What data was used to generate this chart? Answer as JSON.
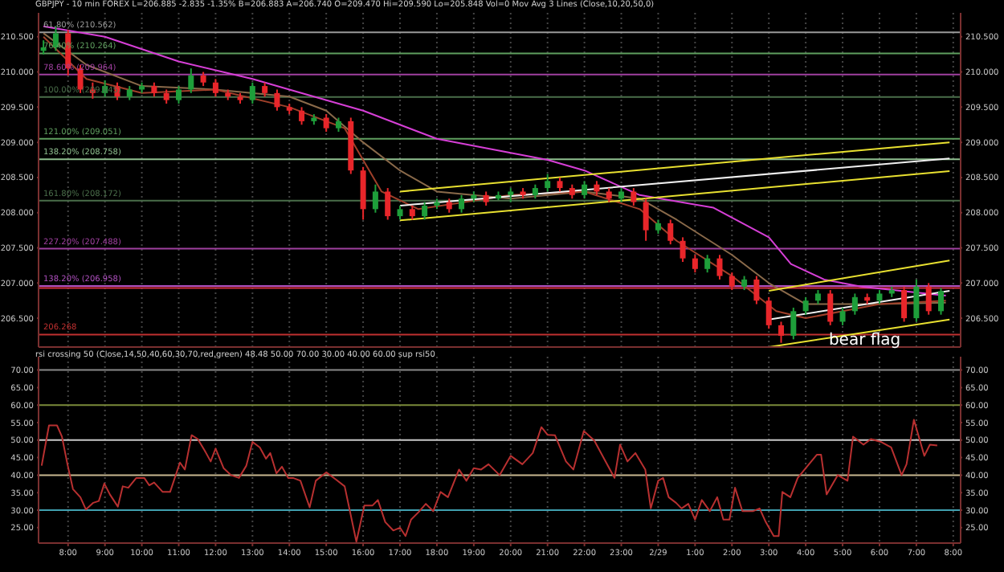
{
  "chart_data": [
    {
      "type": "candlestick",
      "title": "GBPJPY - 10 min FOREX  L=206.885  -2.835  -1.35%  B=206.883  A=206.740  O=209.470  Hi=209.590  Lo=205.848  Vol=0  Mov Avg 3 Lines (Close,10,20,50,0)",
      "x": [
        "--02-28T07:20",
        "--02-28T07:40",
        "--02-28T08:00",
        "--02-28T08:20",
        "--02-28T08:40",
        "--02-28T09:00",
        "--02-28T09:20",
        "--02-28T09:40",
        "--02-28T10:00",
        "--02-28T10:20",
        "--02-28T10:40",
        "--02-28T11:00",
        "--02-28T11:20",
        "--02-28T11:40",
        "--02-28T12:00",
        "--02-28T12:20",
        "--02-28T12:40",
        "--02-28T13:00",
        "--02-28T13:20",
        "--02-28T13:40",
        "--02-28T14:00",
        "--02-28T14:20",
        "--02-28T14:40",
        "--02-28T15:00",
        "--02-28T15:20",
        "--02-28T15:40",
        "--02-28T16:00",
        "--02-28T16:20",
        "--02-28T16:40",
        "--02-28T17:00",
        "--02-28T17:20",
        "--02-28T17:40",
        "--02-28T18:00",
        "--02-28T18:20",
        "--02-28T18:40",
        "--02-28T19:00",
        "--02-28T19:20",
        "--02-28T19:40",
        "--02-28T20:00",
        "--02-28T20:20",
        "--02-28T20:40",
        "--02-28T21:00",
        "--02-28T21:20",
        "--02-28T21:40",
        "--02-28T22:00",
        "--02-28T22:20",
        "--02-28T22:40",
        "--02-28T23:00",
        "--02-28T23:20",
        "--02-28T23:40",
        "--02-29T00:00",
        "--02-29T00:20",
        "--02-29T00:40",
        "--02-29T01:00",
        "--02-29T01:20",
        "--02-29T01:40",
        "--02-29T02:00",
        "--02-29T02:20",
        "--02-29T02:40",
        "--02-29T03:00",
        "--02-29T03:20",
        "--02-29T03:40",
        "--02-29T04:00",
        "--02-29T04:20",
        "--02-29T04:40",
        "--02-29T05:00",
        "--02-29T05:20",
        "--02-29T05:40",
        "--02-29T06:00",
        "--02-29T06:20",
        "--02-29T06:40",
        "--02-29T07:00",
        "--02-29T07:20",
        "--02-29T07:40"
      ],
      "ohlc": [
        [
          210.3,
          210.45,
          210.25,
          210.35
        ],
        [
          210.35,
          210.65,
          210.3,
          210.55
        ],
        [
          210.55,
          210.6,
          209.95,
          210.05
        ],
        [
          210.05,
          210.1,
          209.7,
          209.75
        ],
        [
          209.75,
          209.85,
          209.62,
          209.7
        ],
        [
          209.7,
          209.88,
          209.65,
          209.8
        ],
        [
          209.8,
          209.85,
          209.6,
          209.65
        ],
        [
          209.65,
          209.8,
          209.6,
          209.75
        ],
        [
          209.75,
          209.85,
          209.7,
          209.8
        ],
        [
          209.8,
          209.85,
          209.65,
          209.7
        ],
        [
          209.7,
          209.75,
          209.55,
          209.6
        ],
        [
          209.6,
          209.8,
          209.55,
          209.75
        ],
        [
          209.75,
          210.05,
          209.7,
          209.95
        ],
        [
          209.95,
          210.0,
          209.8,
          209.85
        ],
        [
          209.85,
          209.9,
          209.65,
          209.7
        ],
        [
          209.7,
          209.75,
          209.6,
          209.65
        ],
        [
          209.65,
          209.7,
          209.55,
          209.6
        ],
        [
          209.6,
          209.85,
          209.55,
          209.8
        ],
        [
          209.8,
          209.85,
          209.65,
          209.7
        ],
        [
          209.7,
          209.75,
          209.45,
          209.5
        ],
        [
          209.5,
          209.55,
          209.4,
          209.45
        ],
        [
          209.45,
          209.5,
          209.25,
          209.3
        ],
        [
          209.3,
          209.4,
          209.25,
          209.35
        ],
        [
          209.35,
          209.4,
          209.15,
          209.2
        ],
        [
          209.2,
          209.35,
          209.15,
          209.3
        ],
        [
          209.3,
          209.35,
          208.55,
          208.6
        ],
        [
          208.6,
          208.65,
          207.9,
          208.05
        ],
        [
          208.05,
          208.4,
          208.0,
          208.3
        ],
        [
          208.3,
          208.35,
          207.9,
          207.95
        ],
        [
          207.95,
          208.1,
          207.9,
          208.05
        ],
        [
          208.05,
          208.1,
          207.9,
          207.95
        ],
        [
          207.95,
          208.15,
          207.9,
          208.1
        ],
        [
          208.1,
          208.2,
          208.05,
          208.15
        ],
        [
          208.15,
          208.2,
          208.0,
          208.05
        ],
        [
          208.05,
          208.25,
          208.0,
          208.2
        ],
        [
          208.2,
          208.3,
          208.15,
          208.25
        ],
        [
          208.25,
          208.3,
          208.1,
          208.15
        ],
        [
          208.2,
          208.3,
          208.18,
          208.25
        ],
        [
          208.25,
          208.35,
          208.15,
          208.3
        ],
        [
          208.3,
          208.35,
          208.2,
          208.25
        ],
        [
          208.25,
          208.4,
          208.2,
          208.35
        ],
        [
          208.35,
          208.55,
          208.3,
          208.45
        ],
        [
          208.45,
          208.5,
          208.3,
          208.35
        ],
        [
          208.35,
          208.4,
          208.2,
          208.25
        ],
        [
          208.25,
          208.45,
          208.2,
          208.4
        ],
        [
          208.4,
          208.45,
          208.25,
          208.3
        ],
        [
          208.3,
          208.35,
          208.15,
          208.2
        ],
        [
          208.2,
          208.35,
          208.15,
          208.3
        ],
        [
          208.3,
          208.35,
          208.1,
          208.15
        ],
        [
          208.15,
          208.2,
          207.6,
          207.75
        ],
        [
          207.75,
          207.9,
          207.7,
          207.85
        ],
        [
          207.85,
          207.9,
          207.55,
          207.6
        ],
        [
          207.6,
          207.65,
          207.3,
          207.35
        ],
        [
          207.35,
          207.4,
          207.15,
          207.2
        ],
        [
          207.2,
          207.4,
          207.15,
          207.35
        ],
        [
          207.35,
          207.4,
          207.05,
          207.1
        ],
        [
          207.1,
          207.15,
          206.9,
          206.95
        ],
        [
          206.95,
          207.1,
          206.9,
          207.05
        ],
        [
          207.05,
          207.1,
          206.7,
          206.75
        ],
        [
          206.75,
          206.8,
          206.35,
          206.4
        ],
        [
          206.4,
          206.45,
          206.15,
          206.25
        ],
        [
          206.25,
          206.65,
          206.2,
          206.6
        ],
        [
          206.6,
          206.8,
          206.55,
          206.75
        ],
        [
          206.75,
          206.9,
          206.7,
          206.85
        ],
        [
          206.85,
          206.9,
          206.4,
          206.45
        ],
        [
          206.45,
          206.65,
          206.4,
          206.6
        ],
        [
          206.6,
          206.85,
          206.55,
          206.8
        ],
        [
          206.8,
          206.85,
          206.7,
          206.75
        ],
        [
          206.75,
          206.9,
          206.7,
          206.85
        ],
        [
          206.85,
          206.95,
          206.8,
          206.9
        ],
        [
          206.9,
          206.95,
          206.45,
          206.5
        ],
        [
          206.5,
          207.05,
          206.45,
          206.95
        ],
        [
          206.95,
          207.0,
          206.55,
          206.6
        ],
        [
          206.6,
          206.93,
          206.55,
          206.885
        ]
      ],
      "colors": [
        "#1e9e3a",
        "#1e9e3a",
        "#e8262a",
        "#e8262a",
        "#e8262a",
        "#1e9e3a",
        "#e8262a",
        "#1e9e3a",
        "#1e9e3a",
        "#e8262a",
        "#e8262a",
        "#1e9e3a",
        "#1e9e3a",
        "#e8262a",
        "#e8262a",
        "#e8262a",
        "#e8262a",
        "#1e9e3a",
        "#e8262a",
        "#e8262a",
        "#e8262a",
        "#e8262a",
        "#1e9e3a",
        "#e8262a",
        "#1e9e3a",
        "#e8262a",
        "#e8262a",
        "#1e9e3a",
        "#e8262a",
        "#1e9e3a",
        "#e8262a",
        "#1e9e3a",
        "#1e9e3a",
        "#e8262a",
        "#1e9e3a",
        "#1e9e3a",
        "#e8262a",
        "#1e9e3a",
        "#1e9e3a",
        "#e8262a",
        "#1e9e3a",
        "#1e9e3a",
        "#e8262a",
        "#e8262a",
        "#1e9e3a",
        "#e8262a",
        "#e8262a",
        "#1e9e3a",
        "#e8262a",
        "#e8262a",
        "#1e9e3a",
        "#e8262a",
        "#e8262a",
        "#e8262a",
        "#1e9e3a",
        "#e8262a",
        "#e8262a",
        "#1e9e3a",
        "#e8262a",
        "#e8262a",
        "#e8262a",
        "#1e9e3a",
        "#1e9e3a",
        "#1e9e3a",
        "#e8262a",
        "#1e9e3a",
        "#1e9e3a",
        "#e8262a",
        "#1e9e3a",
        "#1e9e3a",
        "#e8262a",
        "#1e9e3a",
        "#e8262a",
        "#1e9e3a"
      ],
      "series": [
        {
          "type": "line",
          "color": "#d63fd6",
          "x": [
            "--02-28T07:20",
            "--02-28T09:00",
            "--02-28T11:00",
            "--02-28T13:00",
            "--02-28T14:00",
            "--02-28T16:00",
            "--02-28T18:00",
            "--02-28T19:00",
            "--02-28T21:00",
            "--02-28T22:00",
            "--02-28T23:30",
            "--02-29T01:30",
            "--02-29T03:00",
            "--02-29T03:36",
            "--02-29T04:30",
            "--02-29T05:30",
            "--02-29T07:48"
          ],
          "values": [
            210.65,
            210.5,
            210.15,
            209.9,
            209.75,
            209.45,
            209.05,
            208.95,
            208.75,
            208.6,
            208.25,
            208.07,
            207.65,
            207.27,
            207.05,
            206.95,
            206.82
          ]
        },
        {
          "type": "line",
          "color": "#8a6a4a",
          "x": [
            "--02-28T07:20",
            "--02-28T08:30",
            "--02-28T10:00",
            "--02-28T12:00",
            "--02-28T14:00",
            "--02-28T15:00",
            "--02-28T16:00",
            "--02-28T17:00",
            "--02-28T18:00",
            "--02-28T20:00",
            "--02-28T22:00",
            "--02-28T23:30",
            "--02-29T00:30",
            "--02-29T02:00",
            "--02-29T03:00",
            "--02-29T04:00",
            "--02-29T06:00",
            "--02-29T07:48"
          ],
          "values": [
            210.55,
            210.1,
            209.8,
            209.75,
            209.65,
            209.45,
            209.0,
            208.6,
            208.3,
            208.2,
            208.3,
            208.2,
            207.9,
            207.4,
            207.0,
            206.7,
            206.7,
            206.72
          ]
        },
        {
          "type": "line",
          "color": "#a0402a",
          "x": [
            "--02-28T07:20",
            "--02-28T08:30",
            "--02-28T10:00",
            "--02-28T12:00",
            "--02-28T14:00",
            "--02-28T15:30",
            "--02-28T16:30",
            "--02-28T17:30",
            "--02-28T20:00",
            "--02-28T22:00",
            "--02-28T23:30",
            "--02-29T00:30",
            "--02-29T02:00",
            "--02-29T03:12",
            "--02-29T04:00",
            "--02-29T06:00",
            "--02-29T07:48"
          ],
          "values": [
            210.5,
            209.9,
            209.7,
            209.75,
            209.5,
            209.2,
            208.3,
            208.05,
            208.25,
            208.3,
            208.05,
            207.6,
            207.1,
            206.6,
            206.5,
            206.7,
            206.75
          ]
        },
        {
          "type": "line",
          "color": "#e8e030",
          "x": [
            "--02-28T17:00",
            "--02-29T07:54"
          ],
          "values": [
            208.3,
            209.0
          ]
        },
        {
          "type": "line",
          "color": "#f0f0f0",
          "x": [
            "--02-28T17:00",
            "--02-29T07:54"
          ],
          "values": [
            208.1,
            208.77
          ]
        },
        {
          "type": "line",
          "color": "#e8e030",
          "x": [
            "--02-28T17:00",
            "--02-29T07:54"
          ],
          "values": [
            207.89,
            208.59
          ]
        },
        {
          "type": "line",
          "color": "#e8e030",
          "x": [
            "--02-29T03:00",
            "--02-29T07:54"
          ],
          "values": [
            206.89,
            207.32
          ]
        },
        {
          "type": "line",
          "color": "#f0f0f0",
          "x": [
            "--02-29T03:00",
            "--02-29T07:54"
          ],
          "values": [
            206.48,
            206.89
          ]
        },
        {
          "type": "line",
          "color": "#e8e030",
          "x": [
            "--02-29T03:00",
            "--02-29T07:54"
          ],
          "values": [
            206.09,
            206.48
          ]
        }
      ],
      "ref_lines": [
        {
          "axis": "y",
          "value": 210.562,
          "label": "61.80% (210.562)",
          "color": "#9a9a9a"
        },
        {
          "axis": "y",
          "value": 210.264,
          "label": "76.40% (210.264)",
          "color": "#5f9f5f"
        },
        {
          "axis": "y",
          "value": 209.964,
          "label": "78.60% (209.964)",
          "color": "#a040a0"
        },
        {
          "axis": "y",
          "value": 209.645,
          "label": "100.00% (209.645)",
          "color": "#4a6e4a"
        },
        {
          "axis": "y",
          "value": 209.051,
          "label": "121.00% (209.051)",
          "color": "#5f9f5f"
        },
        {
          "axis": "y",
          "value": 208.758,
          "label": "138.20% (208.758)",
          "color": "#8fbf8f"
        },
        {
          "axis": "y",
          "value": 208.172,
          "label": "161.80% (208.172)",
          "color": "#4a6e4a"
        },
        {
          "axis": "y",
          "value": 207.488,
          "label": "227.20% (207.488)",
          "color": "#a040a0"
        },
        {
          "axis": "y",
          "value": 206.958,
          "label": "138.20% (206.958)",
          "color": "#b050c0"
        },
        {
          "axis": "y",
          "value": 206.93,
          "color": "#d03040"
        },
        {
          "axis": "y",
          "value": 206.268,
          "label": "206.268",
          "color": "#c03030"
        }
      ],
      "annotations": [
        {
          "text": "bear flag",
          "x": "--02-29T05:36",
          "y": 206.2
        }
      ],
      "xlim": [
        "--02-28T07:12",
        "--02-29T08:12"
      ],
      "xticks": [
        {
          "value": "--02-28T08:00",
          "label": null
        },
        {
          "value": "--02-28T09:00",
          "label": null
        },
        {
          "value": "--02-28T10:00",
          "label": null
        },
        {
          "value": "--02-28T11:00",
          "label": null
        },
        {
          "value": "--02-28T12:00",
          "label": null
        },
        {
          "value": "--02-28T13:00",
          "label": null
        },
        {
          "value": "--02-28T14:00",
          "label": null
        },
        {
          "value": "--02-28T15:00",
          "label": null
        },
        {
          "value": "--02-28T16:00",
          "label": null
        },
        {
          "value": "--02-28T17:00",
          "label": null
        },
        {
          "value": "--02-28T18:00",
          "label": null
        },
        {
          "value": "--02-28T19:00",
          "label": null
        },
        {
          "value": "--02-28T20:00",
          "label": null
        },
        {
          "value": "--02-28T21:00",
          "label": null
        },
        {
          "value": "--02-28T22:00",
          "label": null
        },
        {
          "value": "--02-28T23:00",
          "label": null
        },
        {
          "value": "--02-29T00:00",
          "label": null
        },
        {
          "value": "--02-29T01:00",
          "label": null
        },
        {
          "value": "--02-29T02:00",
          "label": null
        },
        {
          "value": "--02-29T03:00",
          "label": null
        },
        {
          "value": "--02-29T04:00",
          "label": null
        },
        {
          "value": "--02-29T05:00",
          "label": null
        },
        {
          "value": "--02-29T06:00",
          "label": null
        },
        {
          "value": "--02-29T07:00",
          "label": null
        },
        {
          "value": "--02-29T08:00",
          "label": null
        }
      ],
      "ylim": [
        206.09,
        210.84
      ],
      "yticks": [
        {
          "value": 206.5,
          "label": "206.500"
        },
        {
          "value": 207,
          "label": "207.000"
        },
        {
          "value": 207.5,
          "label": "207.500"
        },
        {
          "value": 208,
          "label": "208.000"
        },
        {
          "value": 208.5,
          "label": "208.500"
        },
        {
          "value": 209,
          "label": "209.000"
        },
        {
          "value": 209.5,
          "label": "209.500"
        },
        {
          "value": 210,
          "label": "210.000"
        },
        {
          "value": 210.5,
          "label": "210.500"
        }
      ],
      "y2lim": [
        206.09,
        210.84
      ],
      "y2ticks": [
        {
          "value": 206.5,
          "label": "206.500"
        },
        {
          "value": 207,
          "label": "207.000"
        },
        {
          "value": 207.5,
          "label": "207.500"
        },
        {
          "value": 208,
          "label": "208.000"
        },
        {
          "value": 208.5,
          "label": "208.500"
        },
        {
          "value": 209,
          "label": "209.000"
        },
        {
          "value": 209.5,
          "label": "209.500"
        },
        {
          "value": 210,
          "label": "210.000"
        },
        {
          "value": 210.5,
          "label": "210.500"
        }
      ],
      "tick_labels": "y",
      "grid": "x"
    },
    {
      "type": "line",
      "title": "rsi crossing 50 (Close,14,50,40,60,30,70,red,green)   48.48   50.00   70.00   30.00   40.00   60.00   sup rsi50",
      "series": [
        {
          "color": "#b83030",
          "x": [
            "--02-28T07:17",
            "--02-28T07:29",
            "--02-28T07:42",
            "--02-28T07:50",
            "--02-28T07:59",
            "--02-28T08:08",
            "--02-28T08:20",
            "--02-28T08:29",
            "--02-28T08:41",
            "--02-28T08:50",
            "--02-28T08:59",
            "--02-28T09:08",
            "--02-28T09:21",
            "--02-28T09:29",
            "--02-28T09:38",
            "--02-28T09:51",
            "--02-28T10:04",
            "--02-28T10:12",
            "--02-28T10:20",
            "--02-28T10:34",
            "--02-28T10:46",
            "--02-28T11:02",
            "--02-28T11:10",
            "--02-28T11:21",
            "--02-28T11:31",
            "--02-28T11:42",
            "--02-28T11:52",
            "--02-28T12:00",
            "--02-28T12:13",
            "--02-28T12:25",
            "--02-28T12:38",
            "--02-28T12:50",
            "--02-28T13:00",
            "--02-28T13:12",
            "--02-28T13:22",
            "--02-28T13:29",
            "--02-28T13:39",
            "--02-28T13:48",
            "--02-28T13:58",
            "--02-28T14:06",
            "--02-28T14:18",
            "--02-28T14:33",
            "--02-28T14:43",
            "--02-28T15:00",
            "--02-28T15:16",
            "--02-28T15:30",
            "--02-28T15:49",
            "--02-28T16:02",
            "--02-28T16:15",
            "--02-28T16:24",
            "--02-28T16:36",
            "--02-28T16:49",
            "--02-28T17:00",
            "--02-28T17:09",
            "--02-28T17:18",
            "--02-28T17:30",
            "--02-28T17:42",
            "--02-28T17:54",
            "--02-28T18:06",
            "--02-28T18:18",
            "--02-28T18:36",
            "--02-28T18:48",
            "--02-28T19:00",
            "--02-28T19:12",
            "--02-28T19:24",
            "--02-28T19:42",
            "--02-28T20:00",
            "--02-28T20:19",
            "--02-28T20:36",
            "--02-28T20:50",
            "--02-28T21:00",
            "--02-28T21:12",
            "--02-28T21:30",
            "--02-28T21:42",
            "--02-28T21:59",
            "--02-28T22:16",
            "--02-28T22:32",
            "--02-28T22:49",
            "--02-28T22:58",
            "--02-28T23:10",
            "--02-28T23:23",
            "--02-28T23:39",
            "--02-28T23:48",
            "--02-29T00:00",
            "--02-29T00:08",
            "--02-29T00:17",
            "--02-29T00:29",
            "--02-29T00:38",
            "--02-29T00:49",
            "--02-29T01:00",
            "--02-29T01:11",
            "--02-29T01:24",
            "--02-29T01:36",
            "--02-29T01:46",
            "--02-29T01:56",
            "--02-29T02:05",
            "--02-29T02:17",
            "--02-29T02:34",
            "--02-29T02:45",
            "--02-29T02:55",
            "--02-29T03:08",
            "--02-29T03:16",
            "--02-29T03:22",
            "--02-29T03:35",
            "--02-29T03:47",
            "--02-29T04:02",
            "--02-29T04:18",
            "--02-29T04:25",
            "--02-29T04:34",
            "--02-29T04:52",
            "--02-29T05:08",
            "--02-29T05:17",
            "--02-29T05:34",
            "--02-29T05:46",
            "--02-29T06:02",
            "--02-29T06:19",
            "--02-29T06:36",
            "--02-29T06:44",
            "--02-29T06:56",
            "--02-29T07:13",
            "--02-29T07:22",
            "--02-29T07:34"
          ],
          "values": [
            42.7,
            54.2,
            54.2,
            51.0,
            43.1,
            36.0,
            33.7,
            30.2,
            32.1,
            32.6,
            37.6,
            34.5,
            31.0,
            36.8,
            36.4,
            39.2,
            39.2,
            37.1,
            37.9,
            35.2,
            35.2,
            43.6,
            41.6,
            51.4,
            50.3,
            47.1,
            43.9,
            47.6,
            42.0,
            40.0,
            39.2,
            42.7,
            49.5,
            47.9,
            44.7,
            46.3,
            40.5,
            42.4,
            39.2,
            39.2,
            38.4,
            30.8,
            38.4,
            40.8,
            38.7,
            36.8,
            21.0,
            31.3,
            31.3,
            32.9,
            26.6,
            24.2,
            25.0,
            22.6,
            27.3,
            29.4,
            31.8,
            29.7,
            35.2,
            33.7,
            41.6,
            38.4,
            42.0,
            41.6,
            43.1,
            40.0,
            45.5,
            43.1,
            46.3,
            53.7,
            51.5,
            51.4,
            43.9,
            41.6,
            52.6,
            49.9,
            44.7,
            39.2,
            48.7,
            43.9,
            46.3,
            41.6,
            30.5,
            38.4,
            39.2,
            33.7,
            32.1,
            30.5,
            31.8,
            27.3,
            32.9,
            29.7,
            33.7,
            27.3,
            27.3,
            36.4,
            29.7,
            29.7,
            30.5,
            26.6,
            22.6,
            22.6,
            35.2,
            33.7,
            39.2,
            42.4,
            45.8,
            45.8,
            34.5,
            40.0,
            38.4,
            51.0,
            48.7,
            50.3,
            49.5,
            47.9,
            40.0,
            43.1,
            55.8,
            45.5,
            48.7,
            48.48
          ]
        }
      ],
      "ref_lines": [
        {
          "axis": "y",
          "value": 70,
          "color": "#8a8a8a"
        },
        {
          "axis": "y",
          "value": 60,
          "color": "#7a8a3a"
        },
        {
          "axis": "y",
          "value": 50,
          "color": "#c8c8c8"
        },
        {
          "axis": "y",
          "value": 40,
          "color": "#c8b890"
        },
        {
          "axis": "y",
          "value": 30,
          "color": "#40a0b0"
        }
      ],
      "xlim": [
        "--02-28T07:12",
        "--02-29T08:12"
      ],
      "xticks": [
        {
          "value": "--02-28T08:00",
          "label": "8:00"
        },
        {
          "value": "--02-28T09:00",
          "label": "9:00"
        },
        {
          "value": "--02-28T10:00",
          "label": "10:00"
        },
        {
          "value": "--02-28T11:00",
          "label": "11:00"
        },
        {
          "value": "--02-28T12:00",
          "label": "12:00"
        },
        {
          "value": "--02-28T13:00",
          "label": "13:00"
        },
        {
          "value": "--02-28T14:00",
          "label": "14:00"
        },
        {
          "value": "--02-28T15:00",
          "label": "15:00"
        },
        {
          "value": "--02-28T16:00",
          "label": "16:00"
        },
        {
          "value": "--02-28T17:00",
          "label": "17:00"
        },
        {
          "value": "--02-28T18:00",
          "label": "18:00"
        },
        {
          "value": "--02-28T19:00",
          "label": "19:00"
        },
        {
          "value": "--02-28T20:00",
          "label": "20:00"
        },
        {
          "value": "--02-28T21:00",
          "label": "21:00"
        },
        {
          "value": "--02-28T22:00",
          "label": "22:00"
        },
        {
          "value": "--02-28T23:00",
          "label": "23:00"
        },
        {
          "value": "--02-29T00:00",
          "label": "2/29"
        },
        {
          "value": "--02-29T01:00",
          "label": "1:00"
        },
        {
          "value": "--02-29T02:00",
          "label": "2:00"
        },
        {
          "value": "--02-29T03:00",
          "label": "3:00"
        },
        {
          "value": "--02-29T04:00",
          "label": "4:00"
        },
        {
          "value": "--02-29T05:00",
          "label": "5:00"
        },
        {
          "value": "--02-29T06:00",
          "label": "6:00"
        },
        {
          "value": "--02-29T07:00",
          "label": "7:00"
        },
        {
          "value": "--02-29T08:00",
          "label": "8:00"
        }
      ],
      "ylim": [
        20.6,
        73.8
      ],
      "yticks": [
        {
          "value": 25,
          "label": "25.00"
        },
        {
          "value": 30,
          "label": "30.00"
        },
        {
          "value": 35,
          "label": "35.00"
        },
        {
          "value": 40,
          "label": "40.00"
        },
        {
          "value": 45,
          "label": "45.00"
        },
        {
          "value": 50,
          "label": "50.00"
        },
        {
          "value": 55,
          "label": "55.00"
        },
        {
          "value": 60,
          "label": "60.00"
        },
        {
          "value": 65,
          "label": "65.00"
        },
        {
          "value": 70,
          "label": "70.00"
        }
      ],
      "y2lim": [
        20.6,
        73.8
      ],
      "y2ticks": [
        {
          "value": 25,
          "label": "25.00"
        },
        {
          "value": 30,
          "label": "30.00"
        },
        {
          "value": 35,
          "label": "35.00"
        },
        {
          "value": 40,
          "label": "40.00"
        },
        {
          "value": 45,
          "label": "45.00"
        },
        {
          "value": 50,
          "label": "50.00"
        },
        {
          "value": 55,
          "label": "55.00"
        },
        {
          "value": 60,
          "label": "60.00"
        },
        {
          "value": 65,
          "label": "65.00"
        },
        {
          "value": 70,
          "label": "70.00"
        }
      ],
      "grid": "x"
    }
  ]
}
